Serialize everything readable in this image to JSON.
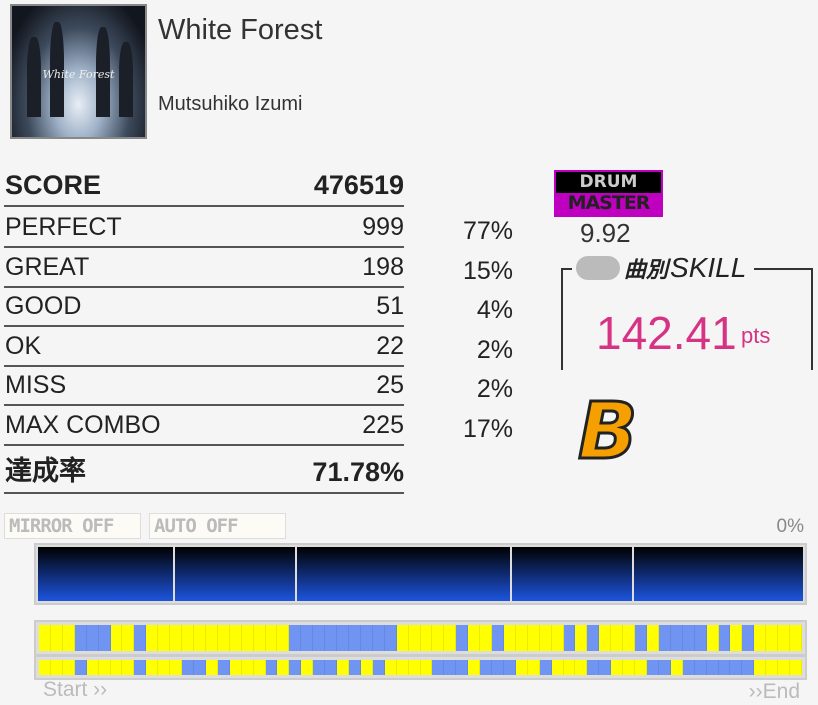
{
  "song": {
    "title": "White Forest",
    "artist": "Mutsuhiko Izumi",
    "jacket_text": "White Forest"
  },
  "results": {
    "score_label": "SCORE",
    "score": "476519",
    "rows": [
      {
        "label": "PERFECT",
        "count": "999",
        "pct": "77%"
      },
      {
        "label": "GREAT",
        "count": "198",
        "pct": "15%"
      },
      {
        "label": "GOOD",
        "count": "51",
        "pct": "4%"
      },
      {
        "label": "OK",
        "count": "22",
        "pct": "2%"
      },
      {
        "label": "MISS",
        "count": "25",
        "pct": "2%"
      },
      {
        "label": "MAX COMBO",
        "count": "225",
        "pct": "17%"
      }
    ],
    "achievement_label": "達成率",
    "achievement": "71.78%"
  },
  "difficulty": {
    "instrument": "DRUM",
    "level_name": "MASTER",
    "level": "9.92",
    "color": "#c000c0"
  },
  "skill": {
    "kanji": "曲別",
    "label": "SKILL",
    "value": "142.41",
    "unit": "pts",
    "color": "#d63384"
  },
  "rank": "B",
  "options": {
    "mirror": "MIRROR OFF",
    "auto": "AUTO OFF"
  },
  "progress": "0%",
  "timeline": {
    "start": "Start ››",
    "end": "››End",
    "row1": "YYYBBBYYBYYYYYYYYYYYYBBBBBBBBBYYYYYBYYBYYYYYBYBYYYBYBBBBYBYBYYYY",
    "row2": "YYYBYYYYBYYYBBYBYYYBYBYBBYBYBYYYYBBBYBBBYYBYYYBBYYYBBYBBBBBBYYYY",
    "colors": {
      "Y": "#ffff00",
      "B": "#6f94f2"
    }
  }
}
